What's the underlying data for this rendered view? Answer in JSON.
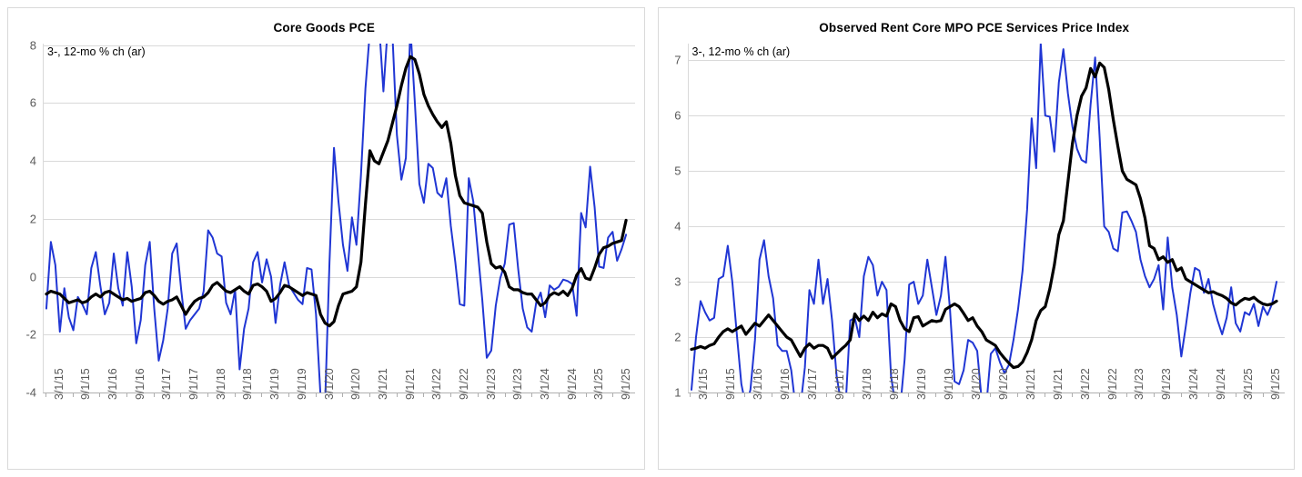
{
  "page": {
    "background_color": "#ffffff"
  },
  "chart_data": [
    {
      "type": "line",
      "title": "Core Goods PCE",
      "annotation": "3-, 12-mo % ch (ar)",
      "xlabel": "",
      "ylabel": "",
      "ylim": [
        -4,
        8
      ],
      "y_plot_max": 8.05,
      "y_ticks": [
        8,
        6,
        4,
        2,
        0,
        -2,
        -4
      ],
      "grid": "horizontal",
      "legend": "none",
      "x_start": "3/2015",
      "x_frequency": "monthly",
      "x_tick_step_months": 6,
      "x_tick_labels": [
        "3/1/15",
        "9/1/15",
        "3/1/16",
        "9/1/16",
        "3/1/17",
        "9/1/17",
        "3/1/18",
        "9/1/18",
        "3/1/19",
        "9/1/19",
        "3/1/20",
        "9/1/20",
        "3/1/21",
        "9/1/21",
        "3/1/22",
        "9/1/22",
        "3/1/23",
        "9/1/23",
        "3/1/24",
        "9/1/24",
        "3/1/25",
        "9/1/25"
      ],
      "series": [
        {
          "name": "3-mo % ch (ar)",
          "color": "#2036d4",
          "stroke_width": 2,
          "values": [
            -1.1,
            1.2,
            0.4,
            -1.9,
            -0.4,
            -1.4,
            -1.85,
            -0.7,
            -0.95,
            -1.3,
            0.3,
            0.85,
            -0.3,
            -1.3,
            -0.9,
            0.8,
            -0.4,
            -1.0,
            0.85,
            -0.35,
            -2.3,
            -1.5,
            0.4,
            1.2,
            -1.1,
            -2.9,
            -2.2,
            -1.1,
            0.8,
            1.15,
            -0.45,
            -1.8,
            -1.5,
            -1.3,
            -1.1,
            -0.5,
            1.6,
            1.35,
            0.8,
            0.7,
            -0.9,
            -1.3,
            -0.45,
            -3.2,
            -1.8,
            -1.1,
            0.5,
            0.85,
            -0.2,
            0.6,
            0.0,
            -1.6,
            -0.3,
            0.5,
            -0.3,
            -0.55,
            -0.8,
            -0.95,
            0.3,
            0.25,
            -1.3,
            -4.1,
            -4.5,
            0.5,
            4.45,
            2.6,
            1.1,
            0.2,
            2.05,
            1.1,
            3.5,
            6.5,
            8.5,
            9.0,
            8.8,
            6.4,
            8.7,
            8.4,
            4.9,
            3.35,
            4.1,
            8.6,
            6.0,
            3.2,
            2.55,
            3.9,
            3.75,
            2.9,
            2.75,
            3.4,
            1.75,
            0.5,
            -0.95,
            -1.0,
            3.4,
            2.6,
            0.9,
            -0.8,
            -2.8,
            -2.55,
            -1.0,
            -0.05,
            0.45,
            1.8,
            1.85,
            0.25,
            -1.1,
            -1.75,
            -1.9,
            -0.9,
            -0.55,
            -1.4,
            -0.3,
            -0.45,
            -0.35,
            -0.1,
            -0.15,
            -0.25,
            -1.35,
            2.2,
            1.7,
            3.8,
            2.4,
            0.35,
            0.3,
            1.35,
            1.55,
            0.55,
            0.95,
            1.45
          ]
        },
        {
          "name": "12-mo % ch",
          "color": "#000000",
          "stroke_width": 3.2,
          "values": [
            -0.6,
            -0.5,
            -0.55,
            -0.6,
            -0.75,
            -0.9,
            -0.85,
            -0.8,
            -0.9,
            -0.85,
            -0.7,
            -0.6,
            -0.7,
            -0.55,
            -0.5,
            -0.6,
            -0.7,
            -0.8,
            -0.75,
            -0.85,
            -0.8,
            -0.75,
            -0.55,
            -0.5,
            -0.65,
            -0.85,
            -0.95,
            -0.85,
            -0.8,
            -0.7,
            -1.0,
            -1.3,
            -1.05,
            -0.85,
            -0.75,
            -0.7,
            -0.55,
            -0.3,
            -0.2,
            -0.35,
            -0.5,
            -0.55,
            -0.45,
            -0.35,
            -0.5,
            -0.6,
            -0.3,
            -0.25,
            -0.35,
            -0.5,
            -0.85,
            -0.75,
            -0.55,
            -0.3,
            -0.35,
            -0.45,
            -0.55,
            -0.65,
            -0.55,
            -0.6,
            -0.65,
            -1.3,
            -1.6,
            -1.7,
            -1.55,
            -1.0,
            -0.6,
            -0.55,
            -0.5,
            -0.35,
            0.5,
            2.5,
            4.35,
            4.0,
            3.9,
            4.3,
            4.7,
            5.3,
            5.9,
            6.6,
            7.2,
            7.6,
            7.5,
            7.0,
            6.3,
            5.9,
            5.6,
            5.35,
            5.15,
            5.35,
            4.6,
            3.5,
            2.8,
            2.55,
            2.5,
            2.45,
            2.4,
            2.2,
            1.2,
            0.45,
            0.3,
            0.35,
            0.15,
            -0.35,
            -0.45,
            -0.45,
            -0.55,
            -0.6,
            -0.6,
            -0.8,
            -1.0,
            -0.9,
            -0.65,
            -0.55,
            -0.62,
            -0.5,
            -0.65,
            -0.4,
            0.05,
            0.28,
            -0.05,
            -0.1,
            0.3,
            0.77,
            1.0,
            1.05,
            1.15,
            1.2,
            1.25,
            1.95
          ]
        }
      ]
    },
    {
      "type": "line",
      "title": "Observed Rent Core MPO PCE Services Price Index",
      "annotation": "3-, 12-mo % ch (ar)",
      "xlabel": "",
      "ylabel": "",
      "ylim": [
        1,
        7
      ],
      "y_plot_max": 7.3,
      "y_ticks": [
        7,
        6,
        5,
        4,
        3,
        2,
        1
      ],
      "grid": "horizontal",
      "legend": "none",
      "x_start": "3/2015",
      "x_frequency": "monthly",
      "x_tick_step_months": 6,
      "x_tick_labels": [
        "3/1/15",
        "9/1/15",
        "3/1/16",
        "9/1/16",
        "3/1/17",
        "9/1/17",
        "3/1/18",
        "9/1/18",
        "3/1/19",
        "9/1/19",
        "3/1/20",
        "9/1/20",
        "3/1/21",
        "9/1/21",
        "3/1/22",
        "9/1/22",
        "3/1/23",
        "9/1/23",
        "3/1/24",
        "9/1/24",
        "3/1/25",
        "9/1/25"
      ],
      "series": [
        {
          "name": "3-mo % ch (ar)",
          "color": "#2036d4",
          "stroke_width": 2,
          "values": [
            1.05,
            2.0,
            2.65,
            2.45,
            2.3,
            2.35,
            3.05,
            3.1,
            3.65,
            3.0,
            2.05,
            1.15,
            0.75,
            1.05,
            1.95,
            3.4,
            3.75,
            3.1,
            2.7,
            1.85,
            1.75,
            1.75,
            1.4,
            0.7,
            0.72,
            1.45,
            2.85,
            2.6,
            3.4,
            2.6,
            3.05,
            2.3,
            1.3,
            0.8,
            0.78,
            2.3,
            2.35,
            2.0,
            3.1,
            3.45,
            3.3,
            2.75,
            3.0,
            2.85,
            1.3,
            0.75,
            0.7,
            1.6,
            2.95,
            3.0,
            2.6,
            2.75,
            3.4,
            2.9,
            2.4,
            2.75,
            3.45,
            2.5,
            1.2,
            1.15,
            1.4,
            1.95,
            1.9,
            1.75,
            0.85,
            0.75,
            1.7,
            1.8,
            1.55,
            1.35,
            1.5,
            1.95,
            2.5,
            3.2,
            4.3,
            5.95,
            5.05,
            7.3,
            6.0,
            5.98,
            5.35,
            6.6,
            7.2,
            6.4,
            5.8,
            5.4,
            5.2,
            5.15,
            6.2,
            7.05,
            5.6,
            4.0,
            3.9,
            3.6,
            3.55,
            4.25,
            4.27,
            4.1,
            3.9,
            3.4,
            3.1,
            2.9,
            3.05,
            3.3,
            2.5,
            3.8,
            2.9,
            2.4,
            1.65,
            2.2,
            2.8,
            3.25,
            3.2,
            2.8,
            3.05,
            2.6,
            2.3,
            2.05,
            2.35,
            2.9,
            2.25,
            2.1,
            2.45,
            2.4,
            2.6,
            2.2,
            2.55,
            2.4,
            2.6,
            3.0
          ]
        },
        {
          "name": "12-mo % ch",
          "color": "#000000",
          "stroke_width": 3.2,
          "values": [
            1.78,
            1.8,
            1.83,
            1.8,
            1.85,
            1.88,
            2.0,
            2.1,
            2.15,
            2.1,
            2.15,
            2.2,
            2.05,
            2.15,
            2.25,
            2.2,
            2.3,
            2.4,
            2.3,
            2.2,
            2.1,
            2.0,
            1.95,
            1.8,
            1.65,
            1.8,
            1.88,
            1.8,
            1.85,
            1.85,
            1.8,
            1.62,
            1.7,
            1.78,
            1.85,
            1.95,
            2.42,
            2.3,
            2.38,
            2.3,
            2.45,
            2.35,
            2.42,
            2.38,
            2.6,
            2.55,
            2.3,
            2.15,
            2.1,
            2.35,
            2.37,
            2.2,
            2.25,
            2.3,
            2.28,
            2.3,
            2.5,
            2.55,
            2.6,
            2.55,
            2.43,
            2.3,
            2.35,
            2.2,
            2.1,
            1.95,
            1.9,
            1.85,
            1.72,
            1.62,
            1.53,
            1.45,
            1.47,
            1.55,
            1.72,
            1.95,
            2.3,
            2.48,
            2.55,
            2.87,
            3.3,
            3.85,
            4.1,
            4.8,
            5.5,
            6.0,
            6.35,
            6.5,
            6.85,
            6.7,
            6.95,
            6.87,
            6.47,
            5.93,
            5.45,
            5.0,
            4.85,
            4.8,
            4.75,
            4.5,
            4.15,
            3.65,
            3.6,
            3.4,
            3.45,
            3.35,
            3.4,
            3.2,
            3.25,
            3.05,
            3.0,
            2.95,
            2.9,
            2.85,
            2.8,
            2.82,
            2.78,
            2.75,
            2.7,
            2.62,
            2.58,
            2.65,
            2.7,
            2.68,
            2.72,
            2.65,
            2.6,
            2.58,
            2.6,
            2.65
          ]
        }
      ]
    }
  ],
  "style": {
    "gridline_color": "#d9d9d9",
    "axis_color": "#afafaf",
    "tick_label_color": "#595959",
    "title_color": "#000000",
    "line_blue": "#2036d4",
    "line_black": "#000000"
  }
}
